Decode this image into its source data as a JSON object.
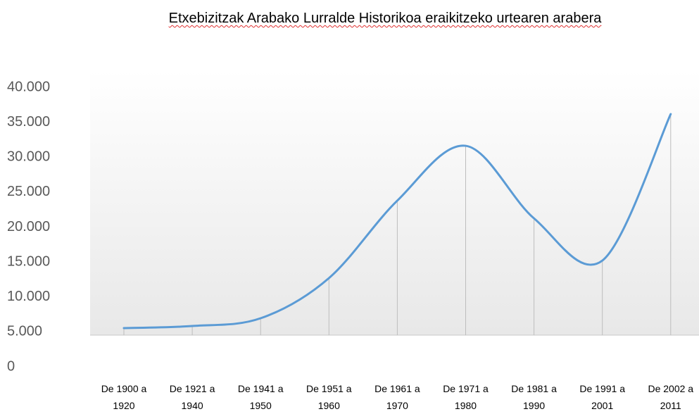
{
  "chart_data": {
    "type": "line",
    "title": "Etxebizitzak Arabako Lurralde Historikoa eraikitzeko urtearen arabera",
    "categories": [
      "De 1900 a 1920",
      "De 1921 a 1940",
      "De 1941 a 1950",
      "De 1951 a 1960",
      "De 1961 a 1970",
      "De 1971 a 1980",
      "De 1981 a 1990",
      "De 1991 a 2001",
      "De 2002 a 2011"
    ],
    "series": [
      {
        "name": "Etxebizitzak",
        "color": "#5b9bd5",
        "values": [
          5540,
          5840,
          6950,
          12700,
          23780,
          31630,
          21250,
          15210,
          36170
        ]
      }
    ],
    "ylim": [
      0,
      40000
    ],
    "yticks": [
      0,
      {
        "value": 5000,
        "label": "5.000"
      },
      {
        "value": 10000,
        "label": "10.000"
      },
      {
        "value": 15000,
        "label": "15.000"
      },
      {
        "value": 20000,
        "label": "20.000"
      },
      {
        "value": 25000,
        "label": "25.000"
      },
      {
        "value": 30000,
        "label": "30.000"
      },
      {
        "value": 35000,
        "label": "35.000"
      },
      {
        "value": 40000,
        "label": "40.000"
      }
    ],
    "drop_lines": true,
    "smooth": true
  }
}
